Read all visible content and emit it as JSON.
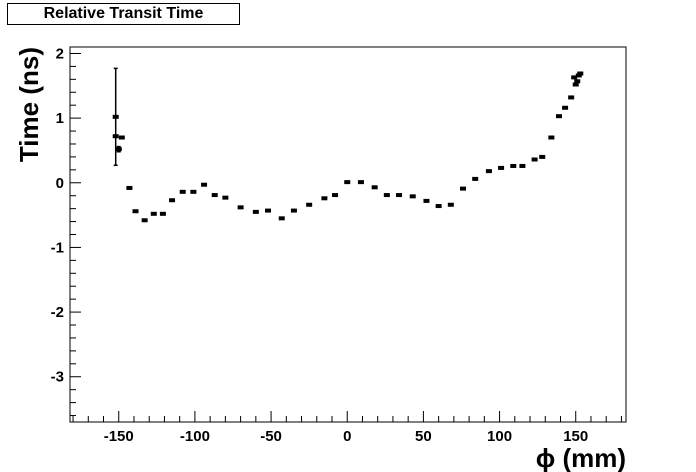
{
  "chart_data": {
    "type": "scatter",
    "title": "Relative Transit Time",
    "xlabel": "ϕ (mm)",
    "ylabel": "Time (ns)",
    "xlim": [
      -182,
      183
    ],
    "ylim": [
      -3.7,
      2.1
    ],
    "x_ticks": [
      -150,
      -100,
      -50,
      0,
      50,
      100,
      150
    ],
    "y_ticks": [
      -3,
      -2,
      -1,
      0,
      1,
      2
    ],
    "grid": false,
    "legend": "none",
    "colors": {
      "marker": "#000000",
      "axis": "#000000"
    },
    "points": [
      {
        "x": -152,
        "y": 1.02,
        "err": 0.75
      },
      {
        "x": -152,
        "y": 0.72,
        "err": 0
      },
      {
        "x": -150,
        "y": 0.52,
        "err": 0.04
      },
      {
        "x": -148,
        "y": 0.7,
        "err": 0
      },
      {
        "x": -143,
        "y": -0.08,
        "err": 0
      },
      {
        "x": -139,
        "y": -0.44,
        "err": 0
      },
      {
        "x": -133,
        "y": -0.58,
        "err": 0
      },
      {
        "x": -127,
        "y": -0.48,
        "err": 0
      },
      {
        "x": -121,
        "y": -0.48,
        "err": 0
      },
      {
        "x": -115,
        "y": -0.27,
        "err": 0
      },
      {
        "x": -108,
        "y": -0.14,
        "err": 0
      },
      {
        "x": -101,
        "y": -0.14,
        "err": 0
      },
      {
        "x": -94,
        "y": -0.03,
        "err": 0
      },
      {
        "x": -87,
        "y": -0.19,
        "err": 0
      },
      {
        "x": -80,
        "y": -0.23,
        "err": 0
      },
      {
        "x": -70,
        "y": -0.38,
        "err": 0
      },
      {
        "x": -60,
        "y": -0.45,
        "err": 0
      },
      {
        "x": -52,
        "y": -0.43,
        "err": 0
      },
      {
        "x": -43,
        "y": -0.55,
        "err": 0
      },
      {
        "x": -35,
        "y": -0.43,
        "err": 0
      },
      {
        "x": -25,
        "y": -0.34,
        "err": 0
      },
      {
        "x": -15,
        "y": -0.24,
        "err": 0
      },
      {
        "x": -8,
        "y": -0.19,
        "err": 0
      },
      {
        "x": 0,
        "y": 0.01,
        "err": 0
      },
      {
        "x": 9,
        "y": 0.01,
        "err": 0
      },
      {
        "x": 18,
        "y": -0.07,
        "err": 0
      },
      {
        "x": 26,
        "y": -0.19,
        "err": 0
      },
      {
        "x": 34,
        "y": -0.19,
        "err": 0
      },
      {
        "x": 43,
        "y": -0.21,
        "err": 0
      },
      {
        "x": 52,
        "y": -0.28,
        "err": 0
      },
      {
        "x": 60,
        "y": -0.36,
        "err": 0
      },
      {
        "x": 68,
        "y": -0.34,
        "err": 0
      },
      {
        "x": 76,
        "y": -0.09,
        "err": 0
      },
      {
        "x": 84,
        "y": 0.06,
        "err": 0
      },
      {
        "x": 93,
        "y": 0.18,
        "err": 0
      },
      {
        "x": 101,
        "y": 0.23,
        "err": 0
      },
      {
        "x": 109,
        "y": 0.26,
        "err": 0
      },
      {
        "x": 115,
        "y": 0.26,
        "err": 0
      },
      {
        "x": 123,
        "y": 0.36,
        "err": 0
      },
      {
        "x": 128,
        "y": 0.4,
        "err": 0
      },
      {
        "x": 134,
        "y": 0.7,
        "err": 0
      },
      {
        "x": 139,
        "y": 1.03,
        "err": 0
      },
      {
        "x": 143,
        "y": 1.16,
        "err": 0
      },
      {
        "x": 147,
        "y": 1.32,
        "err": 0
      },
      {
        "x": 149,
        "y": 1.63,
        "err": 0
      },
      {
        "x": 150,
        "y": 1.52,
        "err": 0
      },
      {
        "x": 151,
        "y": 1.57,
        "err": 0
      },
      {
        "x": 152,
        "y": 1.66,
        "err": 0
      },
      {
        "x": 153,
        "y": 1.69,
        "err": 0
      }
    ]
  }
}
